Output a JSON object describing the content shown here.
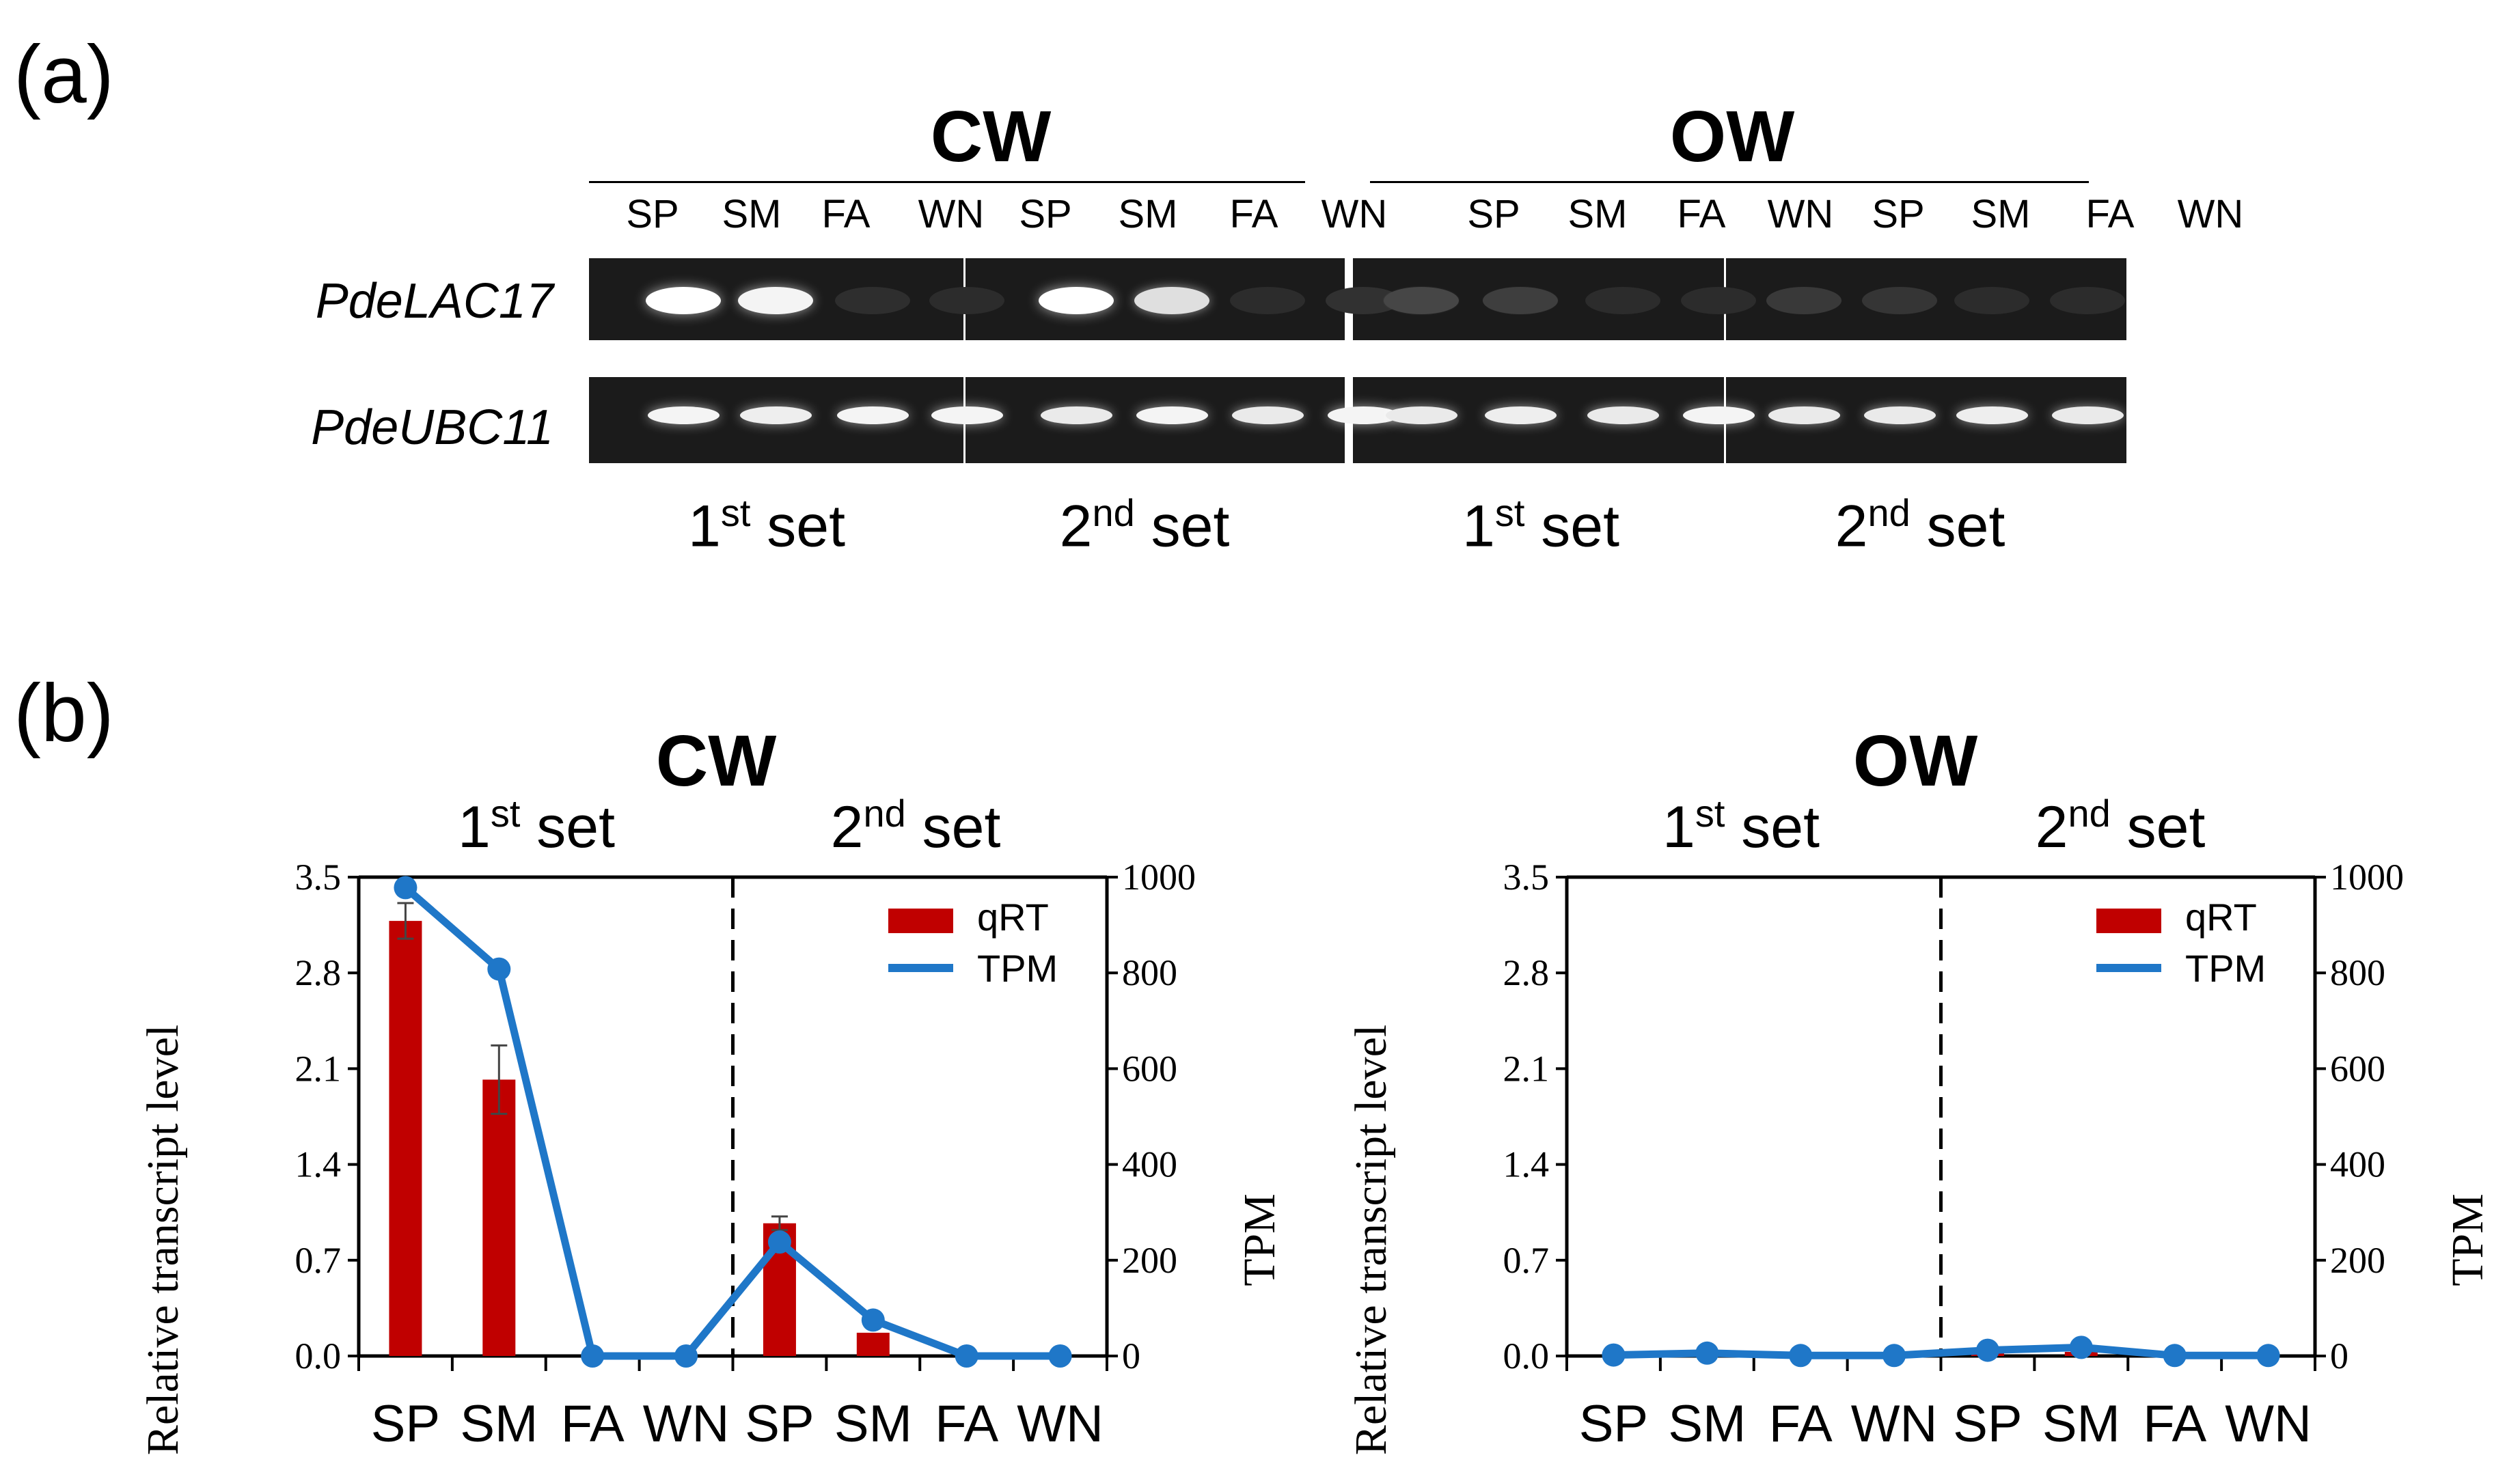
{
  "panel_a": {
    "label": "(a)",
    "groups": [
      {
        "title": "CW",
        "lanes": [
          "SP",
          "SM",
          "FA",
          "WN",
          "SP",
          "SM",
          "FA",
          "WN"
        ],
        "sets": [
          {
            "num": "1",
            "sup": "st",
            "word": "set"
          },
          {
            "num": "2",
            "sup": "nd",
            "word": "set"
          }
        ]
      },
      {
        "title": "OW",
        "lanes": [
          "SP",
          "SM",
          "FA",
          "WN",
          "SP",
          "SM",
          "FA",
          "WN"
        ],
        "sets": [
          {
            "num": "1",
            "sup": "st",
            "word": "set"
          },
          {
            "num": "2",
            "sup": "nd",
            "word": "set"
          }
        ]
      }
    ],
    "genes": [
      "PdeLAC17",
      "PdeUBC11"
    ],
    "band_intensity": {
      "PdeLAC17": {
        "CW": [
          1.0,
          0.95,
          0.03,
          0.02,
          1.0,
          0.85,
          0.02,
          0.04
        ],
        "OW": [
          0.14,
          0.1,
          0.02,
          0.02,
          0.08,
          0.06,
          0.02,
          0.02
        ]
      },
      "PdeUBC11": {
        "CW": [
          0.95,
          0.92,
          0.95,
          0.95,
          0.9,
          0.95,
          0.9,
          0.95
        ],
        "OW": [
          0.9,
          0.92,
          0.9,
          0.95,
          0.9,
          0.9,
          0.92,
          0.9
        ]
      }
    }
  },
  "panel_b": {
    "label": "(b)"
  },
  "chart_data": [
    {
      "type": "bar+line",
      "title": "CW",
      "categories": [
        "SP",
        "SM",
        "FA",
        "WN",
        "SP",
        "SM",
        "FA",
        "WN"
      ],
      "set_labels": [
        {
          "num": "1",
          "sup": "st",
          "word": "set"
        },
        {
          "num": "2",
          "sup": "nd",
          "word": "set"
        }
      ],
      "ylabel": "Relative transcript level",
      "y2label": "TPM",
      "ylim": [
        0,
        3.5
      ],
      "y2lim": [
        0,
        1000
      ],
      "yticks": [
        "0.0",
        "0.7",
        "1.4",
        "2.1",
        "2.8",
        "3.5"
      ],
      "y2ticks": [
        "0",
        "200",
        "400",
        "600",
        "800",
        "1000"
      ],
      "legend": [
        "qRT",
        "TPM"
      ],
      "series": [
        {
          "name": "qRT",
          "axis": "left",
          "color": "#c00000",
          "values": [
            3.18,
            2.02,
            0,
            0,
            0.97,
            0.17,
            0,
            0
          ],
          "errors": [
            0.13,
            0.25,
            0,
            0,
            0.05,
            0,
            0,
            0
          ]
        },
        {
          "name": "TPM",
          "axis": "right",
          "color": "#1f77c8",
          "values": [
            978,
            808,
            0,
            0,
            238,
            75,
            0,
            0
          ]
        }
      ]
    },
    {
      "type": "bar+line",
      "title": "OW",
      "categories": [
        "SP",
        "SM",
        "FA",
        "WN",
        "SP",
        "SM",
        "FA",
        "WN"
      ],
      "set_labels": [
        {
          "num": "1",
          "sup": "st",
          "word": "set"
        },
        {
          "num": "2",
          "sup": "nd",
          "word": "set"
        }
      ],
      "ylabel": "Relative transcript level",
      "y2label": "TPM",
      "ylim": [
        0,
        3.5
      ],
      "y2lim": [
        0,
        1000
      ],
      "yticks": [
        "0.0",
        "0.7",
        "1.4",
        "2.1",
        "2.8",
        "3.5"
      ],
      "y2ticks": [
        "0",
        "200",
        "400",
        "600",
        "800",
        "1000"
      ],
      "legend": [
        "qRT",
        "TPM"
      ],
      "series": [
        {
          "name": "qRT",
          "axis": "left",
          "color": "#c00000",
          "values": [
            0,
            0,
            0,
            0,
            0.02,
            0.03,
            0,
            0
          ],
          "errors": [
            0,
            0,
            0,
            0,
            0,
            0,
            0,
            0
          ]
        },
        {
          "name": "TPM",
          "axis": "right",
          "color": "#1f77c8",
          "values": [
            2,
            6,
            1,
            1,
            12,
            18,
            1,
            1
          ]
        }
      ]
    }
  ]
}
